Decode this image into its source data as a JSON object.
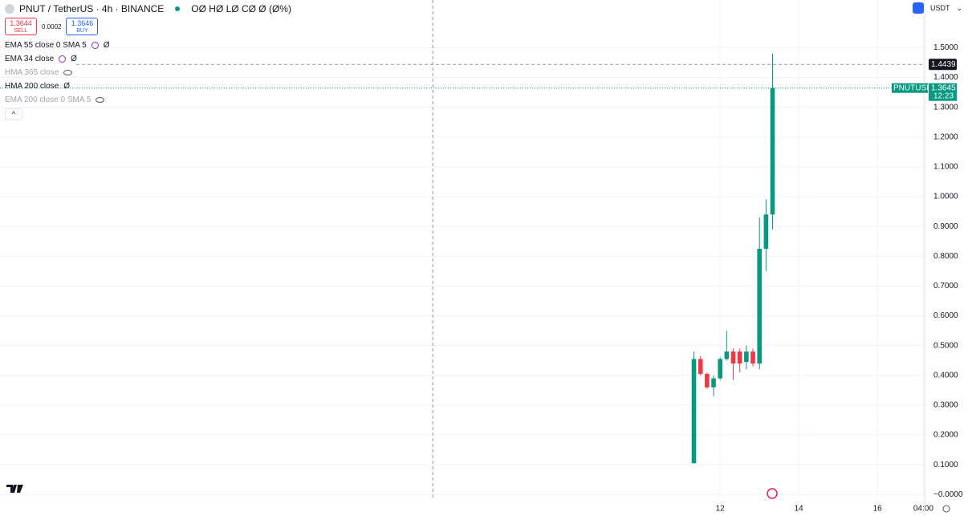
{
  "toolbar": {
    "symbol": "PNUT / TetherUS · 4h · BINANCE",
    "ohlc": "OØ HØ LØ CØ Ø (Ø%)",
    "sell_price": "1.3644",
    "sell_label": "SELL",
    "spread": "0.0002",
    "buy_price": "1.3646",
    "buy_label": "BUY",
    "currency": "USDT",
    "indicators": [
      {
        "name": "EMA 55 close 0 SMA 5",
        "value": "Ø",
        "hidden": false
      },
      {
        "name": "EMA 34 close",
        "value": "Ø",
        "hidden": false
      },
      {
        "name": "HMA 365 close",
        "value": "",
        "hidden": true
      },
      {
        "name": "HMA 200 close",
        "value": "Ø",
        "hidden": false
      },
      {
        "name": "EMA 200 close 0 SMA 5",
        "value": "",
        "hidden": true
      }
    ]
  },
  "chart_data": {
    "type": "candlestick",
    "up_color": "#089981",
    "down_color": "#f23645",
    "grid": true,
    "x": [
      11.333,
      11.5,
      11.667,
      11.833,
      12,
      12.167,
      12.333,
      12.5,
      12.667,
      12.833,
      13,
      13.167,
      13.333
    ],
    "open": [
      0.105,
      0.455,
      0.405,
      0.36,
      0.39,
      0.455,
      0.48,
      0.48,
      0.445,
      0.48,
      0.44,
      0.825,
      0.94
    ],
    "high": [
      0.48,
      0.465,
      0.41,
      0.4,
      0.46,
      0.55,
      0.49,
      0.49,
      0.5,
      0.49,
      0.93,
      0.99,
      1.48
    ],
    "low": [
      0.105,
      0.4,
      0.355,
      0.33,
      0.385,
      0.45,
      0.385,
      0.41,
      0.42,
      0.43,
      0.42,
      0.75,
      0.89
    ],
    "close": [
      0.455,
      0.405,
      0.36,
      0.39,
      0.455,
      0.48,
      0.44,
      0.44,
      0.48,
      0.44,
      0.825,
      0.94,
      1.3645
    ],
    "xlim": [
      -6.31,
      17.2
    ],
    "xticks": [
      12,
      14,
      16,
      {
        "value": 17.167,
        "label": "04:00"
      }
    ],
    "ylim": [
      -0.01,
      1.66
    ],
    "yticks": [
      {
        "value": 0,
        "label": "−0.0000"
      },
      {
        "value": 0.1,
        "label": "0.1000"
      },
      {
        "value": 0.2,
        "label": "0.2000"
      },
      {
        "value": 0.3,
        "label": "0.3000"
      },
      {
        "value": 0.4,
        "label": "0.4000"
      },
      {
        "value": 0.5,
        "label": "0.5000"
      },
      {
        "value": 0.6,
        "label": "0.6000"
      },
      {
        "value": 0.7,
        "label": "0.7000"
      },
      {
        "value": 0.8,
        "label": "0.8000"
      },
      {
        "value": 0.9,
        "label": "0.9000"
      },
      {
        "value": 1.0,
        "label": "1.0000"
      },
      {
        "value": 1.1,
        "label": "1.1000"
      },
      {
        "value": 1.2,
        "label": "1.2000"
      },
      {
        "value": 1.3,
        "label": "1.3000"
      },
      {
        "value": 1.4,
        "label": "1.4000"
      },
      {
        "value": 1.5,
        "label": "1.5000"
      }
    ],
    "crosshair_price": 1.4439,
    "crosshair_x": 4.694,
    "last_price": {
      "symbol": "PNUTUSDT",
      "value": 1.3645,
      "countdown": "12:23"
    }
  }
}
